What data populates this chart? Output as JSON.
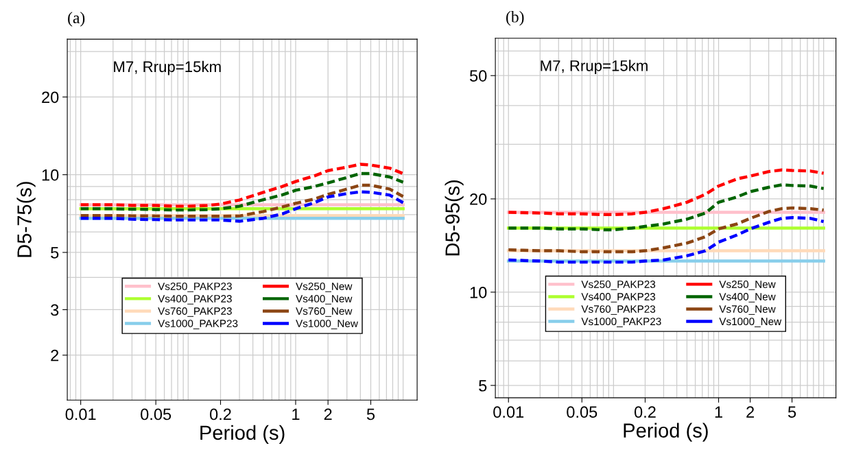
{
  "chart_data": [
    {
      "type": "line",
      "title": "(a)",
      "xlabel": "Period (s)",
      "ylabel": "D5-75(s)",
      "annotations": [
        "M7, Rrup=15km"
      ],
      "log": "xy",
      "grid": true,
      "legend": "bottom",
      "xlim": [
        0.0075,
        13.5
      ],
      "ylim": [
        1.34,
        33.5
      ],
      "xticks": [
        0.01,
        0.05,
        0.2,
        1,
        2,
        5
      ],
      "yticks": [
        2,
        3,
        5,
        10,
        20
      ],
      "x": [
        0.01,
        0.02,
        0.03,
        0.05,
        0.075,
        0.1,
        0.15,
        0.2,
        0.3,
        0.5,
        0.75,
        1,
        1.5,
        2,
        3,
        4,
        5,
        7.5,
        10
      ],
      "series": [
        {
          "name": "Vs250_PAKP23",
          "color": "#ffc0cb",
          "line_style": "solid",
          "values": [
            7.65,
            7.65,
            7.65,
            7.65,
            7.65,
            7.65,
            7.65,
            7.65,
            7.65,
            7.65,
            7.65,
            7.65,
            7.65,
            7.65,
            7.65,
            7.65,
            7.65,
            7.65,
            7.65
          ]
        },
        {
          "name": "Vs400_PAKP23",
          "color": "#adff2f",
          "line_style": "solid",
          "values": [
            7.38,
            7.38,
            7.38,
            7.38,
            7.38,
            7.38,
            7.38,
            7.38,
            7.38,
            7.38,
            7.38,
            7.38,
            7.38,
            7.38,
            7.38,
            7.38,
            7.38,
            7.38,
            7.38
          ]
        },
        {
          "name": "Vs760_PAKP23",
          "color": "#ffdab9",
          "line_style": "solid",
          "values": [
            6.95,
            6.95,
            6.95,
            6.95,
            6.95,
            6.95,
            6.95,
            6.95,
            6.95,
            6.95,
            6.95,
            6.95,
            6.95,
            6.95,
            6.95,
            6.95,
            6.95,
            6.95,
            6.95
          ]
        },
        {
          "name": "Vs1000_PAKP23",
          "color": "#87ceeb",
          "line_style": "solid",
          "values": [
            6.78,
            6.78,
            6.78,
            6.78,
            6.78,
            6.78,
            6.78,
            6.78,
            6.78,
            6.78,
            6.78,
            6.78,
            6.78,
            6.78,
            6.78,
            6.78,
            6.78,
            6.78,
            6.78
          ]
        },
        {
          "name": "Vs250_New",
          "color": "#ff0000",
          "line_style": "dashed",
          "values": [
            7.65,
            7.65,
            7.6,
            7.6,
            7.55,
            7.55,
            7.6,
            7.7,
            7.98,
            8.54,
            9.0,
            9.41,
            9.9,
            10.37,
            10.7,
            10.97,
            10.9,
            10.6,
            10.1
          ]
        },
        {
          "name": "Vs400_New",
          "color": "#006400",
          "line_style": "dashed",
          "values": [
            7.38,
            7.38,
            7.35,
            7.33,
            7.3,
            7.3,
            7.33,
            7.38,
            7.55,
            8.0,
            8.35,
            8.7,
            9.0,
            9.3,
            9.75,
            10.1,
            10.1,
            9.8,
            9.35
          ]
        },
        {
          "name": "Vs760_New",
          "color": "#8b4513",
          "line_style": "dashed",
          "values": [
            6.95,
            6.95,
            6.93,
            6.92,
            6.9,
            6.9,
            6.9,
            6.9,
            6.92,
            7.2,
            7.5,
            7.75,
            8.05,
            8.39,
            8.8,
            9.1,
            9.1,
            8.8,
            8.23
          ]
        },
        {
          "name": "Vs1000_New",
          "color": "#0000ff",
          "line_style": "dashed",
          "values": [
            6.78,
            6.78,
            6.72,
            6.7,
            6.68,
            6.68,
            6.68,
            6.68,
            6.6,
            6.78,
            7.05,
            7.38,
            7.8,
            8.2,
            8.45,
            8.58,
            8.55,
            8.34,
            7.79
          ]
        }
      ]
    },
    {
      "type": "line",
      "title": "(b)",
      "xlabel": "Period (s)",
      "ylabel": "D5-95(s)",
      "annotations": [
        "M7, Rrup=15km"
      ],
      "log": "xy",
      "grid": true,
      "legend": "bottom",
      "xlim": [
        0.0075,
        13.1
      ],
      "ylim": [
        4.56,
        66
      ],
      "xticks": [
        0.01,
        0.05,
        0.2,
        1,
        2,
        5
      ],
      "yticks": [
        5,
        10,
        20,
        50
      ],
      "x": [
        0.01,
        0.02,
        0.03,
        0.05,
        0.075,
        0.1,
        0.15,
        0.2,
        0.3,
        0.5,
        0.75,
        1,
        1.5,
        2,
        3,
        4,
        5,
        7.5,
        10
      ],
      "series": [
        {
          "name": "Vs250_PAKP23",
          "color": "#ffc0cb",
          "line_style": "solid",
          "values": [
            18.1,
            18.1,
            18.1,
            18.1,
            18.1,
            18.1,
            18.1,
            18.1,
            18.1,
            18.1,
            18.1,
            18.1,
            18.1,
            18.1,
            18.1,
            18.1,
            18.1,
            18.1,
            18.1
          ]
        },
        {
          "name": "Vs400_PAKP23",
          "color": "#adff2f",
          "line_style": "solid",
          "values": [
            16.1,
            16.1,
            16.1,
            16.1,
            16.1,
            16.1,
            16.1,
            16.1,
            16.1,
            16.1,
            16.1,
            16.1,
            16.1,
            16.1,
            16.1,
            16.1,
            16.1,
            16.1,
            16.1
          ]
        },
        {
          "name": "Vs760_PAKP23",
          "color": "#ffdab9",
          "line_style": "solid",
          "values": [
            13.6,
            13.6,
            13.6,
            13.6,
            13.6,
            13.6,
            13.6,
            13.6,
            13.6,
            13.6,
            13.6,
            13.6,
            13.6,
            13.6,
            13.6,
            13.6,
            13.6,
            13.6,
            13.6
          ]
        },
        {
          "name": "Vs1000_PAKP23",
          "color": "#87ceeb",
          "line_style": "solid",
          "values": [
            12.6,
            12.6,
            12.6,
            12.6,
            12.6,
            12.6,
            12.6,
            12.6,
            12.6,
            12.6,
            12.6,
            12.6,
            12.6,
            12.6,
            12.6,
            12.6,
            12.6,
            12.6,
            12.6
          ]
        },
        {
          "name": "Vs250_New",
          "color": "#ff0000",
          "line_style": "dashed",
          "values": [
            18.1,
            18.0,
            17.9,
            17.9,
            17.8,
            17.8,
            17.9,
            18.1,
            18.6,
            19.5,
            20.7,
            22.0,
            23.2,
            23.7,
            24.5,
            24.8,
            24.7,
            24.6,
            24.2
          ]
        },
        {
          "name": "Vs400_New",
          "color": "#006400",
          "line_style": "dashed",
          "values": [
            16.1,
            16.1,
            16.0,
            16.0,
            15.9,
            15.9,
            16.1,
            16.3,
            16.6,
            17.2,
            18.0,
            19.5,
            20.3,
            21.1,
            21.8,
            22.2,
            22.1,
            22.0,
            21.6
          ]
        },
        {
          "name": "Vs760_New",
          "color": "#8b4513",
          "line_style": "dashed",
          "values": [
            13.7,
            13.6,
            13.6,
            13.5,
            13.5,
            13.5,
            13.5,
            13.6,
            13.9,
            14.4,
            15.1,
            16.0,
            16.6,
            17.3,
            18.2,
            18.6,
            18.7,
            18.6,
            18.4
          ]
        },
        {
          "name": "Vs1000_New",
          "color": "#0000ff",
          "line_style": "dashed",
          "values": [
            12.7,
            12.6,
            12.5,
            12.5,
            12.5,
            12.5,
            12.5,
            12.6,
            12.7,
            13.1,
            13.6,
            14.5,
            15.3,
            16.0,
            16.8,
            17.3,
            17.4,
            17.3,
            16.9
          ]
        }
      ]
    }
  ]
}
